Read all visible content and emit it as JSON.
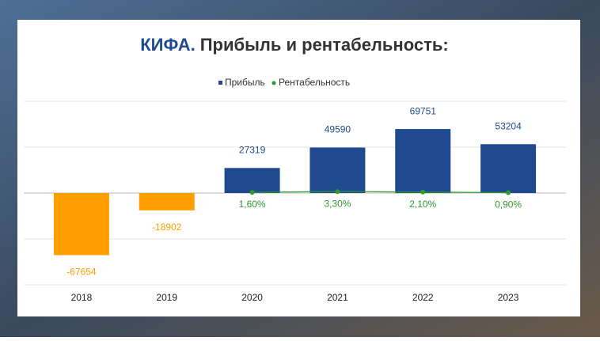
{
  "chart_data": {
    "type": "bar",
    "title_highlight": "КИФА.",
    "title": "Прибыль и рентабельность:",
    "categories": [
      "2018",
      "2019",
      "2020",
      "2021",
      "2022",
      "2023"
    ],
    "series": [
      {
        "name": "Прибыль",
        "color": "#1f4a8f",
        "negative_color": "#ff9e00",
        "values": [
          -67654,
          -18902,
          27319,
          49590,
          69751,
          53204
        ]
      },
      {
        "name": "Рентабельность",
        "color": "#2e9a2e",
        "axis": "y2",
        "type": "line",
        "values": [
          null,
          null,
          1.6,
          3.3,
          2.1,
          0.9
        ],
        "value_labels": [
          null,
          null,
          "1,60%",
          "3,30%",
          "2,10%",
          "0,90%"
        ]
      }
    ],
    "ylim": [
      -100000,
      100000
    ],
    "yticks": [
      -100000,
      -50000,
      0,
      50000,
      100000
    ],
    "y2lim": [
      -200,
      200
    ],
    "grid": true,
    "legend": "top"
  }
}
